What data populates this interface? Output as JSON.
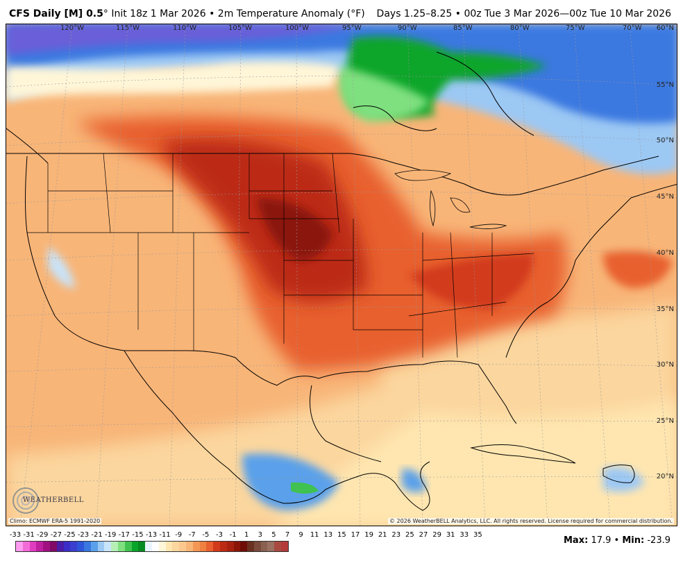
{
  "header": {
    "model": "CFS Daily [M] 0.5",
    "degree_symbol": "°",
    "init": "Init 18z 1 Mar 2026",
    "bullet": "•",
    "variable": "2m Temperature Anomaly (°F)",
    "valid": "Days 1.25–8.25 • 00z Tue 3 Mar 2026—00z Tue 10 Mar 2026"
  },
  "map": {
    "longitude_labels": [
      "120°W",
      "115°W",
      "110°W",
      "105°W",
      "100°W",
      "95°W",
      "90°W",
      "85°W",
      "80°W",
      "75°W",
      "70°W"
    ],
    "latitude_labels": [
      "60°N",
      "55°N",
      "50°N",
      "45°N",
      "40°N",
      "35°N",
      "30°N",
      "25°N",
      "20°N"
    ],
    "anomaly_palette": {
      "deep_blue": "#3b3fcf",
      "blue": "#3a78e0",
      "light_blue": "#9cc8f4",
      "green": "#08a52a",
      "light_green": "#7fe07f",
      "pale": "#fff6d8",
      "light_orange": "#fbc98e",
      "orange": "#f39755",
      "red_orange": "#e8602f",
      "red": "#d23a1c",
      "dark_red": "#a8200f"
    }
  },
  "logo": {
    "text": "WEATHERBELL"
  },
  "footer": {
    "climo": "Climo: ECMWF ERA-5 1991-2020",
    "copyright": "© 2026 WeatherBELL Analytics, LLC. All rights reserved. License required for commercial distribution."
  },
  "legend": {
    "ticks": [
      "-33",
      "-31",
      "-29",
      "-27",
      "-25",
      "-23",
      "-21",
      "-19",
      "-17",
      "-15",
      "-13",
      "-11",
      "-9",
      "-7",
      "-5",
      "-3",
      "-1",
      "1",
      "3",
      "5",
      "7",
      "9",
      "11",
      "13",
      "15",
      "17",
      "19",
      "21",
      "23",
      "25",
      "27",
      "29",
      "31",
      "33",
      "35"
    ],
    "colors": [
      "#ff9cf0",
      "#f46ad8",
      "#e03cc0",
      "#c020a0",
      "#a01080",
      "#800a66",
      "#4a1da8",
      "#3a2dc8",
      "#3b3fcf",
      "#2f55d8",
      "#3a78e0",
      "#5aa0ea",
      "#9cc8f4",
      "#c8e4fa",
      "#b6f0b6",
      "#7fe07f",
      "#3fc24f",
      "#08a52a",
      "#068a22",
      "#e8f4ff",
      "#ffffff",
      "#fff6d8",
      "#ffe6b0",
      "#fbd69e",
      "#fbc98e",
      "#f8b578",
      "#f39755",
      "#ee8040",
      "#e8602f",
      "#d23a1c",
      "#bc2a14",
      "#a8200f",
      "#8a1408",
      "#6e0e05",
      "#6a3020",
      "#7a4a3a",
      "#8a6050",
      "#9a7060",
      "#a84a40",
      "#b43a3a"
    ],
    "max_label": "Max",
    "max_value": "17.9",
    "separator": "•",
    "min_label": "Min",
    "min_value": "-23.9"
  }
}
